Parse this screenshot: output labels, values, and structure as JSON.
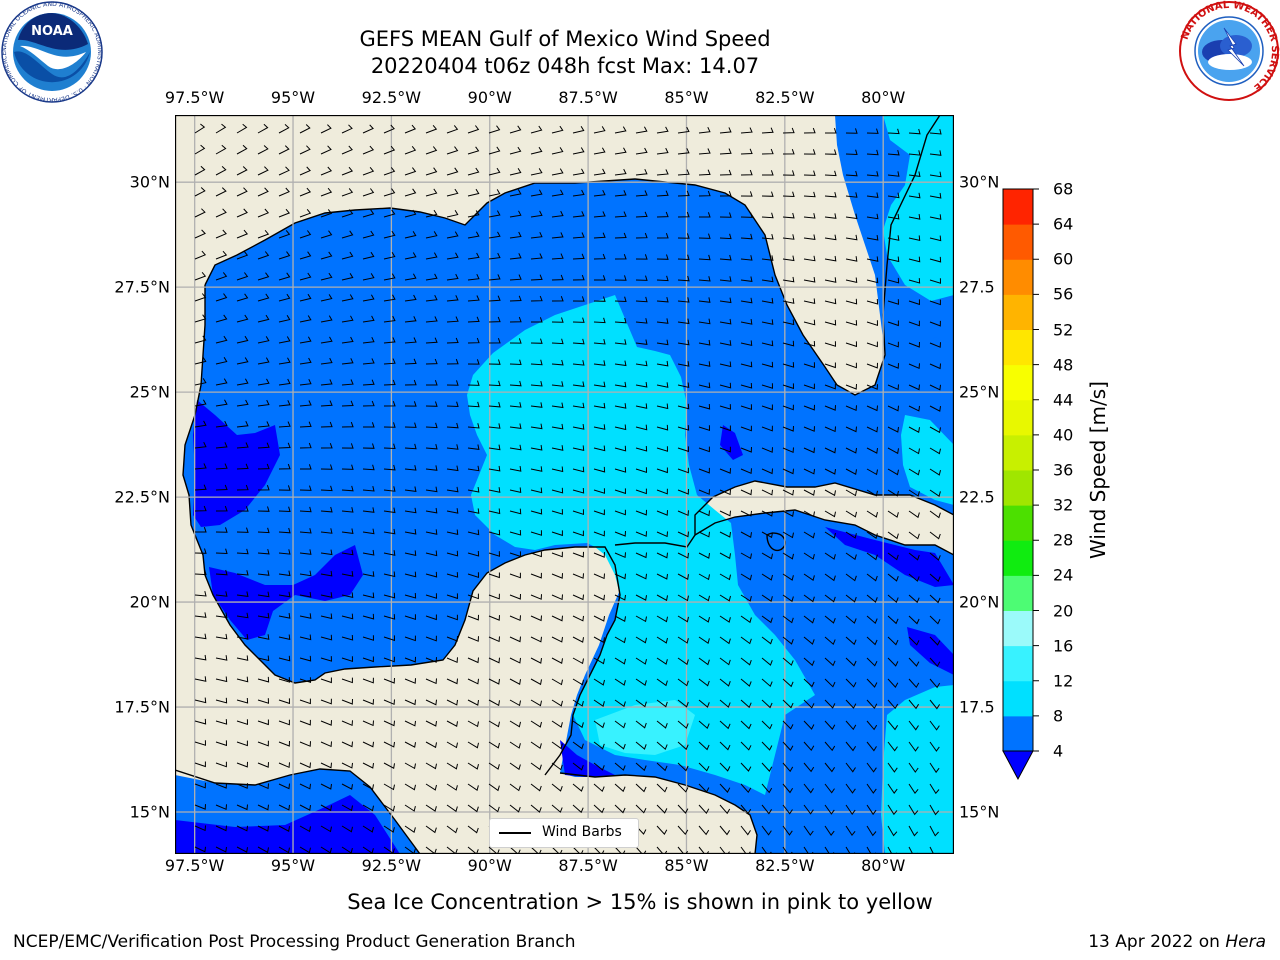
{
  "header": {
    "title_line1": "GEFS MEAN Gulf of Mexico Wind Speed",
    "title_line2": "20220404 t06z 048h fcst   Max: 14.07"
  },
  "axes": {
    "lon_ticks": [
      "97.5°W",
      "95°W",
      "92.5°W",
      "90°W",
      "87.5°W",
      "85°W",
      "82.5°W",
      "80°W"
    ],
    "lat_ticks_left": [
      "30°N",
      "27.5°N",
      "25°N",
      "22.5°N",
      "20°N",
      "17.5°N",
      "15°N"
    ],
    "lat_ticks_right": [
      "30°N",
      "27.5",
      "25°N",
      "22.5",
      "20°N",
      "17.5",
      "15°N"
    ]
  },
  "map": {
    "lon_range": [
      -98,
      -78.2
    ],
    "lat_range": [
      14,
      31.6
    ],
    "land_color": "#efecdc",
    "legend_label": "Wind Barbs"
  },
  "colorbar": {
    "label": "Wind Speed [m/s]",
    "ticks": [
      "4",
      "8",
      "12",
      "16",
      "20",
      "24",
      "28",
      "32",
      "36",
      "40",
      "44",
      "48",
      "52",
      "56",
      "60",
      "64",
      "68"
    ],
    "colors": [
      "#0073ff",
      "#00e0ff",
      "#38f2ff",
      "#9bfafa",
      "#4dfc74",
      "#10ec10",
      "#4ce000",
      "#a0e600",
      "#c8f000",
      "#e8f800",
      "#f8ff00",
      "#ffe600",
      "#ffb400",
      "#ff8c00",
      "#ff5a00",
      "#ff2400"
    ],
    "extend_color": "#0000ff"
  },
  "note": "Sea Ice Concentration > 15% is shown in pink to yellow",
  "footer": {
    "left": "NCEP/EMC/Verification Post Processing Product Generation Branch",
    "date": "13 Apr 2022 on ",
    "machine": "Hera"
  },
  "logos": {
    "noaa_text": "NOAA",
    "noaa_ring": "NATIONAL OCEANIC AND ATMOSPHERIC ADMINISTRATION · U.S. DEPARTMENT OF COMMERCE",
    "nws_ring": "NATIONAL WEATHER SERVICE"
  }
}
